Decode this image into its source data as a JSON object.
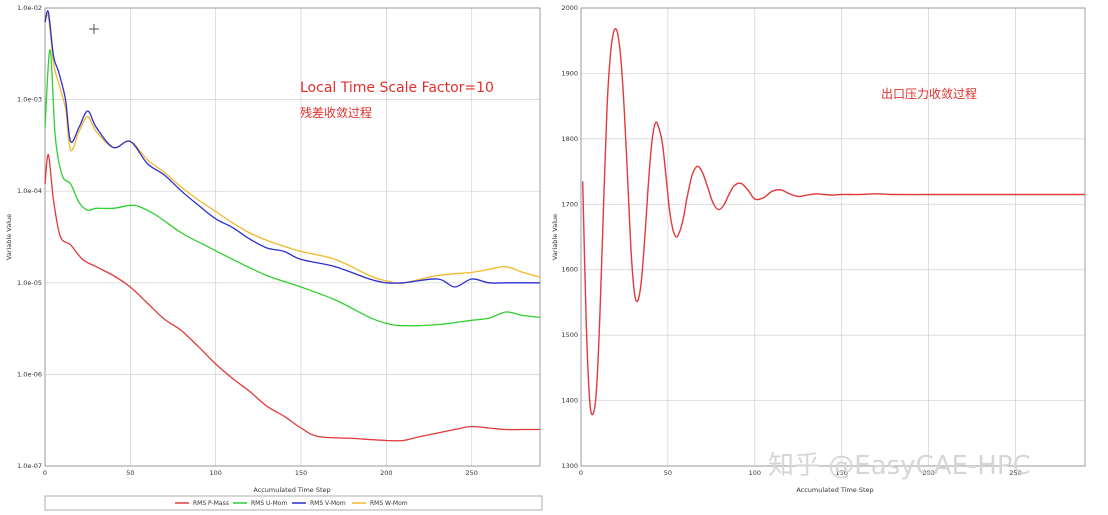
{
  "chart_data": [
    {
      "type": "line",
      "scale": "log",
      "xlabel": "Accumulated Time Step",
      "ylabel": "Variable Value",
      "xlim": [
        0,
        290
      ],
      "ylim": [
        1e-07,
        0.01
      ],
      "x_ticks": [
        0,
        50,
        100,
        150,
        200,
        250
      ],
      "y_ticks": [
        "1.0e-07",
        "1.0e-06",
        "1.0e-05",
        "1.0e-04",
        "1.0e-03",
        "1.0e-02"
      ],
      "grid": true,
      "legend_position": "bottom",
      "annotations": [
        "Local Time Scale Factor=10",
        "残差收敛过程"
      ],
      "series": [
        {
          "name": "RMS P-Mass",
          "color": "#e03a3a",
          "x": [
            0,
            2,
            5,
            9,
            15,
            22,
            30,
            40,
            50,
            60,
            70,
            80,
            90,
            100,
            110,
            120,
            130,
            140,
            150,
            160,
            180,
            200,
            210,
            220,
            240,
            250,
            260,
            270,
            280,
            290
          ],
          "y": [
            0.00012,
            0.00025,
            8e-05,
            3.2e-05,
            2.6e-05,
            1.8e-05,
            1.5e-05,
            1.2e-05,
            9e-06,
            6e-06,
            4e-06,
            3e-06,
            2e-06,
            1.3e-06,
            9e-07,
            6.5e-07,
            4.5e-07,
            3.5e-07,
            2.6e-07,
            2.1e-07,
            2e-07,
            1.9e-07,
            1.9e-07,
            2.1e-07,
            2.5e-07,
            2.7e-07,
            2.6e-07,
            2.5e-07,
            2.5e-07,
            2.5e-07
          ]
        },
        {
          "name": "RMS U-Mom",
          "color": "#2ed02e",
          "x": [
            0,
            3,
            6,
            10,
            15,
            20,
            25,
            30,
            40,
            50,
            55,
            65,
            80,
            95,
            110,
            130,
            150,
            170,
            190,
            200,
            210,
            230,
            250,
            260,
            270,
            280,
            290
          ],
          "y": [
            0.0005,
            0.0035,
            0.0004,
            0.00015,
            0.00012,
            7.5e-05,
            6.2e-05,
            6.5e-05,
            6.5e-05,
            7e-05,
            6.8e-05,
            5.5e-05,
            3.5e-05,
            2.5e-05,
            1.8e-05,
            1.2e-05,
            9e-06,
            6.5e-06,
            4.2e-06,
            3.6e-06,
            3.4e-06,
            3.5e-06,
            3.9e-06,
            4.1e-06,
            4.8e-06,
            4.4e-06,
            4.2e-06
          ]
        },
        {
          "name": "RMS V-Mom",
          "color": "#2b2ed0",
          "x": [
            0,
            2,
            5,
            8,
            12,
            15,
            20,
            25,
            30,
            40,
            50,
            60,
            70,
            80,
            90,
            100,
            110,
            120,
            130,
            140,
            150,
            170,
            190,
            200,
            210,
            230,
            240,
            250,
            260,
            270,
            280,
            290
          ],
          "y": [
            0.007,
            0.009,
            0.003,
            0.002,
            0.001,
            0.00035,
            0.0005,
            0.00075,
            0.0005,
            0.0003,
            0.00035,
            0.0002,
            0.00015,
            0.0001,
            7e-05,
            5e-05,
            4e-05,
            3e-05,
            2.4e-05,
            2.2e-05,
            1.8e-05,
            1.5e-05,
            1.1e-05,
            1e-05,
            1e-05,
            1.1e-05,
            9e-06,
            1.1e-05,
            1e-05,
            1e-05,
            1e-05,
            1e-05
          ]
        },
        {
          "name": "RMS W-Mom",
          "color": "#f2b82a",
          "x": [
            0,
            2,
            5,
            8,
            12,
            15,
            20,
            25,
            30,
            40,
            50,
            60,
            70,
            80,
            90,
            100,
            110,
            120,
            130,
            140,
            150,
            170,
            190,
            200,
            210,
            230,
            250,
            260,
            270,
            280,
            290
          ],
          "y": [
            0.007,
            0.008,
            0.0025,
            0.0015,
            0.0008,
            0.00028,
            0.00045,
            0.00065,
            0.00045,
            0.0003,
            0.00035,
            0.00022,
            0.00016,
            0.00011,
            8e-05,
            6e-05,
            4.5e-05,
            3.5e-05,
            2.9e-05,
            2.5e-05,
            2.2e-05,
            1.8e-05,
            1.2e-05,
            1.05e-05,
            1e-05,
            1.2e-05,
            1.3e-05,
            1.4e-05,
            1.5e-05,
            1.3e-05,
            1.15e-05
          ]
        }
      ]
    },
    {
      "type": "line",
      "xlabel": "Accumulated Time Step",
      "ylabel": "Variable Value",
      "xlim": [
        0,
        290
      ],
      "ylim": [
        1300,
        2000
      ],
      "x_ticks": [
        0,
        50,
        100,
        150,
        200,
        250
      ],
      "y_ticks": [
        1300,
        1400,
        1500,
        1600,
        1700,
        1800,
        1900,
        2000
      ],
      "grid": true,
      "annotations": [
        "出口压力收敛过程"
      ],
      "series": [
        {
          "color": "#e03a3a",
          "x": [
            1,
            3,
            5,
            7,
            9,
            11,
            13,
            15,
            17,
            19,
            21,
            23,
            25,
            27,
            29,
            31,
            33,
            35,
            37,
            39,
            41,
            43,
            45,
            47,
            49,
            51,
            53,
            55,
            57,
            59,
            61,
            64,
            67,
            70,
            73,
            76,
            79,
            82,
            85,
            88,
            92,
            96,
            100,
            105,
            110,
            115,
            120,
            125,
            130,
            135,
            140,
            145,
            150,
            160,
            170,
            180,
            200,
            220,
            240,
            260,
            290
          ],
          "y": [
            1735,
            1520,
            1400,
            1380,
            1420,
            1540,
            1700,
            1850,
            1930,
            1965,
            1962,
            1920,
            1840,
            1730,
            1620,
            1560,
            1555,
            1590,
            1660,
            1740,
            1800,
            1825,
            1815,
            1790,
            1740,
            1690,
            1660,
            1650,
            1660,
            1680,
            1710,
            1745,
            1758,
            1748,
            1725,
            1702,
            1692,
            1698,
            1714,
            1728,
            1732,
            1722,
            1708,
            1710,
            1720,
            1722,
            1716,
            1712,
            1714,
            1716,
            1715,
            1714,
            1715,
            1715,
            1716,
            1715,
            1715,
            1715,
            1715,
            1715,
            1715
          ]
        }
      ]
    }
  ],
  "watermark": "知乎 @EasyCAE-HPC"
}
